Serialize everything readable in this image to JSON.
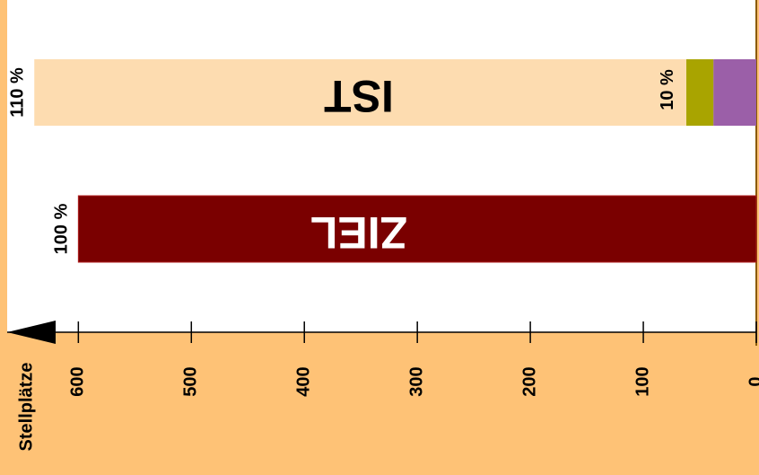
{
  "chart_data": {
    "type": "bar",
    "orientation": "horizontal",
    "stacked": true,
    "categories": [
      "IST",
      "ZIEL"
    ],
    "series": [
      {
        "color": "#9b5fa8",
        "values": [
          38,
          null
        ]
      },
      {
        "color": "#a9a400",
        "values": [
          24,
          null
        ]
      },
      {
        "color": "#fddcb0",
        "values": [
          577,
          null
        ]
      },
      {
        "color": "#7a0000",
        "values": [
          null,
          600
        ]
      }
    ],
    "bar_labels": [
      "110 %",
      "100 %"
    ],
    "annotations": [
      "10 %"
    ],
    "xlabel": "Stellplätze",
    "xlim": [
      0,
      663
    ],
    "xticks": [
      0,
      100,
      200,
      300,
      400,
      500,
      600
    ]
  }
}
